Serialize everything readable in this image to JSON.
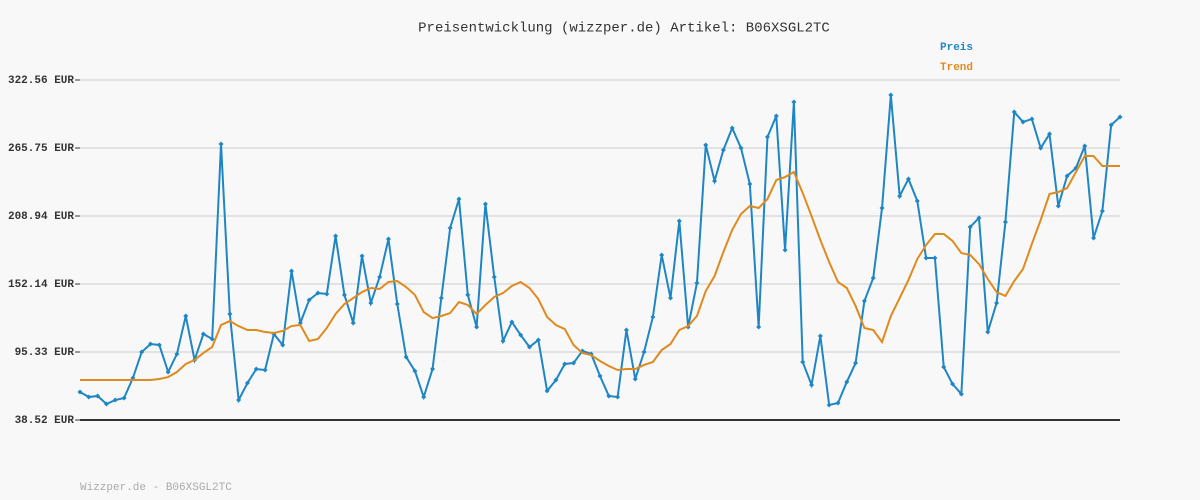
{
  "chart_data": {
    "type": "line",
    "title": "Preisentwicklung (wizzper.de) Artikel: B06XSGL2TC",
    "footer": "Wizzper.de - B06XSGL2TC",
    "ylim": [
      38.52,
      322.56
    ],
    "yticks": [
      {
        "value": 38.52,
        "label": "38.52 EUR"
      },
      {
        "value": 95.33,
        "label": "95.33 EUR"
      },
      {
        "value": 152.14,
        "label": "152.14 EUR"
      },
      {
        "value": 208.94,
        "label": "208.94 EUR"
      },
      {
        "value": 265.75,
        "label": "265.75 EUR"
      },
      {
        "value": 322.56,
        "label": "322.56 EUR"
      }
    ],
    "grid": true,
    "legend": "top-right",
    "series": [
      {
        "name": "Preis",
        "color": "#1f86c4",
        "marker": "diamond",
        "values": [
          61.9,
          57.7,
          58.6,
          51.9,
          55.2,
          56.9,
          73.6,
          95.3,
          102.0,
          101.2,
          78.6,
          93.7,
          125.4,
          88.6,
          110.4,
          106.2,
          269.1,
          127.1,
          55.2,
          69.4,
          81.1,
          80.3,
          110.4,
          101.2,
          163.0,
          119.6,
          138.8,
          144.6,
          143.8,
          192.2,
          143.0,
          119.6,
          175.5,
          136.3,
          158.0,
          189.7,
          135.4,
          91.2,
          79.5,
          57.7,
          81.1,
          140.4,
          198.9,
          223.1,
          143.0,
          116.2,
          219.0,
          158.0,
          104.5,
          120.4,
          109.5,
          99.5,
          105.4,
          62.8,
          71.9,
          85.3,
          86.1,
          96.2,
          93.7,
          75.3,
          58.6,
          57.7,
          113.7,
          72.8,
          95.3,
          124.6,
          176.4,
          140.4,
          204.8,
          116.2,
          153.0,
          268.3,
          238.2,
          264.1,
          282.5,
          265.7,
          235.7,
          116.2,
          274.9,
          292.5,
          180.5,
          304.2,
          87.0,
          67.8,
          108.7,
          51.1,
          52.7,
          70.3,
          86.1,
          137.9,
          157.1,
          215.6,
          310.0,
          225.6,
          239.9,
          221.5,
          173.9,
          173.9,
          82.8,
          68.6,
          60.2,
          199.8,
          207.3,
          112.0,
          136.3,
          203.9,
          295.8,
          287.5,
          290.0,
          265.7,
          277.4,
          217.3,
          242.4,
          249.0,
          267.4,
          190.6,
          213.1,
          285.0,
          291.7
        ]
      },
      {
        "name": "Trend",
        "color": "#e08a1e",
        "values": [
          71.9,
          71.9,
          71.9,
          71.9,
          71.9,
          71.9,
          71.9,
          71.9,
          71.9,
          72.8,
          74.4,
          78.6,
          85.3,
          88.6,
          94.5,
          99.5,
          117.9,
          121.2,
          117.0,
          113.7,
          113.7,
          112.0,
          111.2,
          112.9,
          117.0,
          117.9,
          104.5,
          106.2,
          115.4,
          127.1,
          135.4,
          140.4,
          145.4,
          148.8,
          148.0,
          153.8,
          154.6,
          149.6,
          143.0,
          128.7,
          123.7,
          125.4,
          127.9,
          137.1,
          134.6,
          127.1,
          134.6,
          141.3,
          144.6,
          150.5,
          153.8,
          148.8,
          139.6,
          124.6,
          117.9,
          114.5,
          101.2,
          94.5,
          92.8,
          87.8,
          83.6,
          80.3,
          81.1,
          81.1,
          84.5,
          87.0,
          97.0,
          102.0,
          113.7,
          117.0,
          125.4,
          146.3,
          158.8,
          178.9,
          197.3,
          210.6,
          217.3,
          215.6,
          223.1,
          239.0,
          241.5,
          245.7,
          228.2,
          208.9,
          188.9,
          170.5,
          153.8,
          148.8,
          133.8,
          115.4,
          113.7,
          103.7,
          125.4,
          140.4,
          155.5,
          173.0,
          184.7,
          193.9,
          193.9,
          188.1,
          178.0,
          176.4,
          168.8,
          156.3,
          145.4,
          142.1,
          154.6,
          164.7,
          185.6,
          205.6,
          227.3,
          229.0,
          232.3,
          245.7,
          259.1,
          259.1,
          250.7,
          250.7,
          250.7
        ]
      }
    ]
  }
}
